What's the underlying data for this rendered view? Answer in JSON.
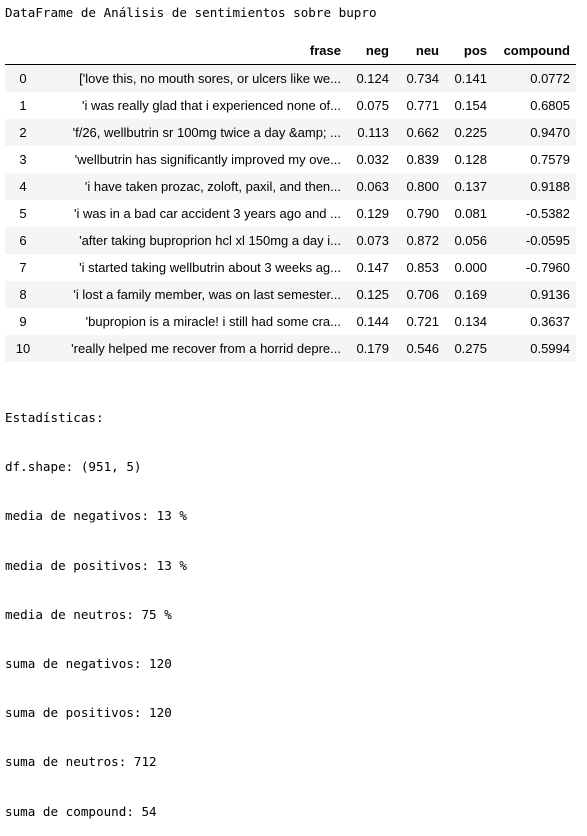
{
  "title": "DataFrame de Análisis de sentimientos sobre bupro",
  "table": {
    "headers": {
      "index": "",
      "frase": "frase",
      "neg": "neg",
      "neu": "neu",
      "pos": "pos",
      "compound": "compound"
    },
    "rows": [
      {
        "index": "0",
        "frase": "['love this, no mouth sores, or ulcers like we...",
        "neg": "0.124",
        "neu": "0.734",
        "pos": "0.141",
        "compound": "0.0772"
      },
      {
        "index": "1",
        "frase": "'i was really glad that i experienced none of...",
        "neg": "0.075",
        "neu": "0.771",
        "pos": "0.154",
        "compound": "0.6805"
      },
      {
        "index": "2",
        "frase": "'f/26, wellbutrin sr 100mg twice a day &amp; ...",
        "neg": "0.113",
        "neu": "0.662",
        "pos": "0.225",
        "compound": "0.9470"
      },
      {
        "index": "3",
        "frase": "'wellbutrin has significantly improved my ove...",
        "neg": "0.032",
        "neu": "0.839",
        "pos": "0.128",
        "compound": "0.7579"
      },
      {
        "index": "4",
        "frase": "'i have taken prozac, zoloft, paxil, and then...",
        "neg": "0.063",
        "neu": "0.800",
        "pos": "0.137",
        "compound": "0.9188"
      },
      {
        "index": "5",
        "frase": "'i was in a bad car accident 3 years ago and ...",
        "neg": "0.129",
        "neu": "0.790",
        "pos": "0.081",
        "compound": "-0.5382"
      },
      {
        "index": "6",
        "frase": "'after taking buproprion hcl xl 150mg a day i...",
        "neg": "0.073",
        "neu": "0.872",
        "pos": "0.056",
        "compound": "-0.0595"
      },
      {
        "index": "7",
        "frase": "'i started taking wellbutrin about 3 weeks ag...",
        "neg": "0.147",
        "neu": "0.853",
        "pos": "0.000",
        "compound": "-0.7960"
      },
      {
        "index": "8",
        "frase": "'i lost a family member, was on last semester...",
        "neg": "0.125",
        "neu": "0.706",
        "pos": "0.169",
        "compound": "0.9136"
      },
      {
        "index": "9",
        "frase": "'bupropion is a miracle! i still had some cra...",
        "neg": "0.144",
        "neu": "0.721",
        "pos": "0.134",
        "compound": "0.3637"
      },
      {
        "index": "10",
        "frase": "'really helped me recover from a horrid depre...",
        "neg": "0.179",
        "neu": "0.546",
        "pos": "0.275",
        "compound": "0.5994"
      }
    ]
  },
  "stats": {
    "heading": "Estadísticas:",
    "shape": "df.shape: (951, 5)",
    "media_negativos": "media de negativos: 13 %",
    "media_positivos": "media de positivos: 13 %",
    "media_neutros": "media de neutros: 75 %",
    "suma_negativos": "suma de negativos: 120",
    "suma_positivos": "suma de positivos: 120",
    "suma_neutros": "suma de neutros: 712",
    "suma_compound": "suma de compound: 54"
  }
}
